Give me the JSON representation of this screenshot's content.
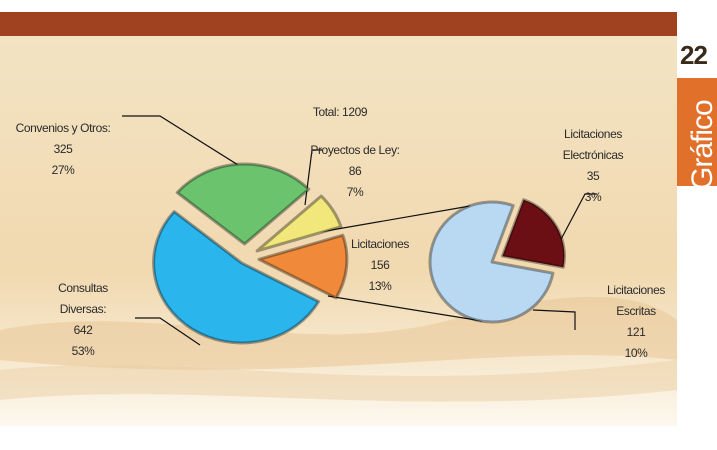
{
  "chart_data": {
    "type": "pie-of-pie",
    "title": "Total: 1209",
    "side_number": "22",
    "side_label": "Gráfico",
    "main": {
      "categories": [
        "Convenios y Otros:",
        "Proyectos de Ley:",
        "Licitaciones",
        "Consultas Diversas:"
      ],
      "values": [
        325,
        86,
        156,
        642
      ],
      "percent_labels": [
        "27%",
        "7%",
        "13%",
        "53%"
      ],
      "colors": [
        "#6cc36e",
        "#f2e77a",
        "#f08a3a",
        "#2ab6ec"
      ]
    },
    "detail": {
      "categories": [
        "Licitaciones Electrónicas",
        "Licitaciones Escritas"
      ],
      "values": [
        35,
        121
      ],
      "percent_labels": [
        "3%",
        "10%"
      ],
      "colors": [
        "#6b0f14",
        "#b9d9f2"
      ]
    }
  }
}
